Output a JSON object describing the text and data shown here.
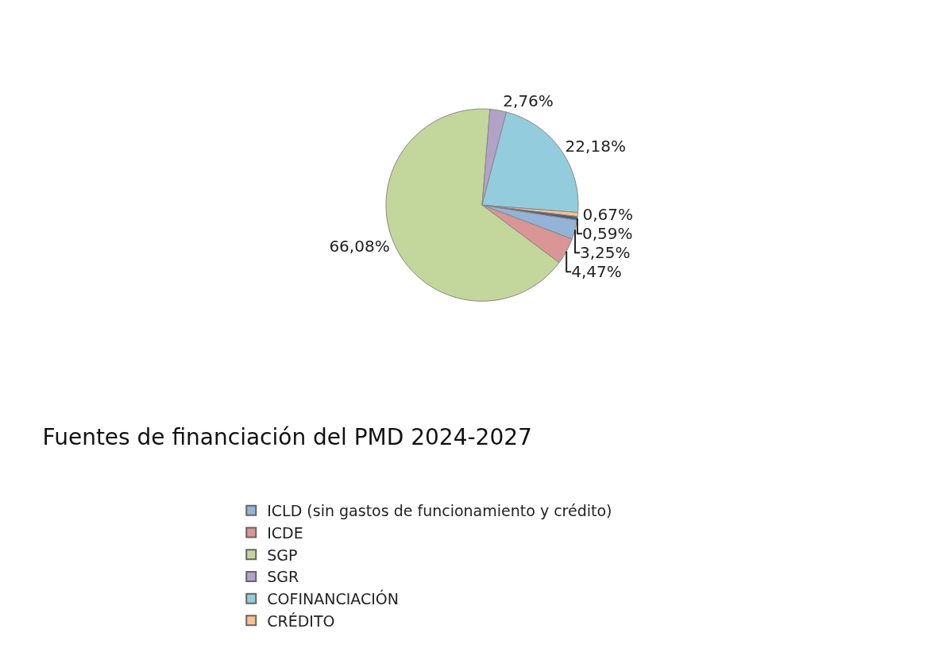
{
  "chart_data": {
    "type": "pie",
    "title": "Fuentes de financiación del PMD 2024-2027",
    "categories": [
      "ICLD (sin gastos de funcionamiento y crédito)",
      "ICDE",
      "SGP",
      "SGR",
      "COFINANCIACIÓN",
      "CRÉDITO",
      null
    ],
    "values": [
      3.25,
      4.47,
      66.08,
      2.76,
      22.18,
      0.67,
      0.59
    ],
    "value_labels": [
      "3,25%",
      "4,47%",
      "66,08%",
      "2,76%",
      "22,18%",
      "0,67%",
      "0,59%"
    ],
    "colors": [
      "#94b3d6",
      "#d99694",
      "#c3d69b",
      "#b3a2c7",
      "#93cddd",
      "#fac090",
      "#4b5f7c"
    ],
    "legend": "bottom"
  }
}
